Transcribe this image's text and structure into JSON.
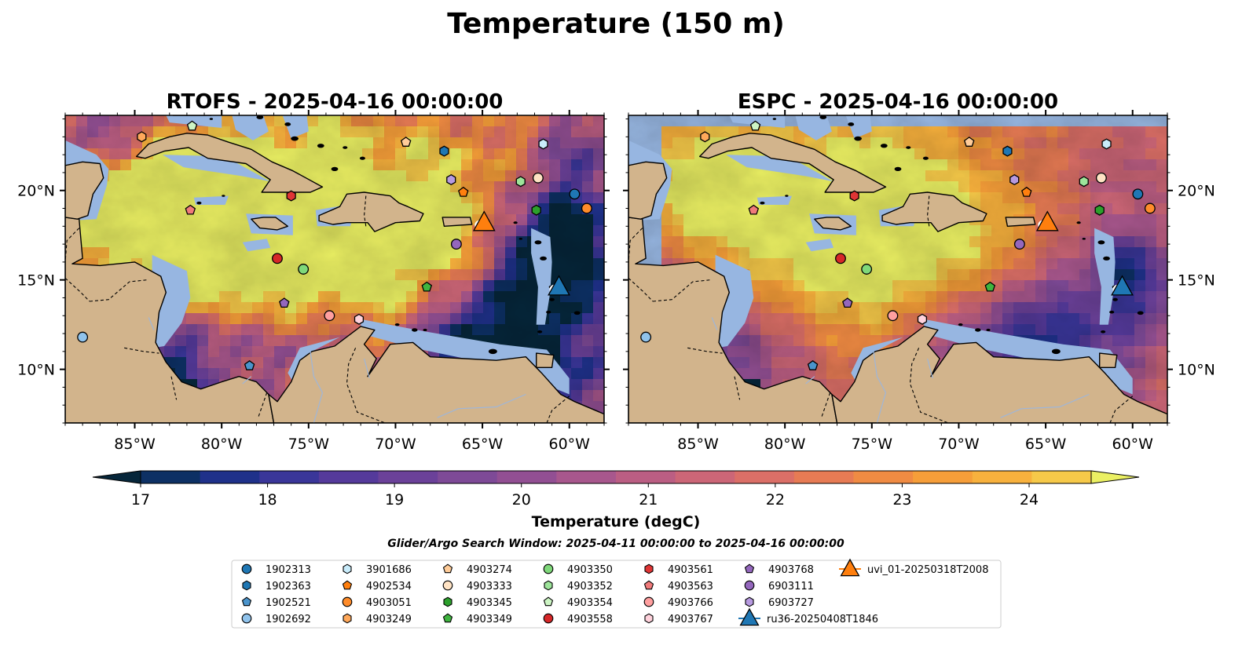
{
  "figure": {
    "title": "Temperature (150 m)",
    "search_window": "Glider/Argo Search Window: 2025-04-11 00:00:00 to 2025-04-16 00:00:00"
  },
  "maps": [
    {
      "id": "rtofs",
      "title": "RTOFS - 2025-04-16 00:00:00"
    },
    {
      "id": "espc",
      "title": "ESPC - 2025-04-16 00:00:00"
    }
  ],
  "axes": {
    "lon_range": [
      -89,
      -58
    ],
    "lat_range": [
      7,
      24.2
    ],
    "lon_ticks": [
      {
        "v": -85,
        "label": "85°W"
      },
      {
        "v": -80,
        "label": "80°W"
      },
      {
        "v": -75,
        "label": "75°W"
      },
      {
        "v": -70,
        "label": "70°W"
      },
      {
        "v": -65,
        "label": "65°W"
      },
      {
        "v": -60,
        "label": "60°W"
      }
    ],
    "lat_ticks": [
      {
        "v": 10,
        "label": "10°N"
      },
      {
        "v": 15,
        "label": "15°N"
      },
      {
        "v": 20,
        "label": "20°N"
      }
    ]
  },
  "colorbar": {
    "label": "Temperature (degC)",
    "min": 16.6,
    "max": 24.6,
    "ticks": [
      {
        "v": 17,
        "label": "17"
      },
      {
        "v": 18,
        "label": "18"
      },
      {
        "v": 19,
        "label": "19"
      },
      {
        "v": 20,
        "label": "20"
      },
      {
        "v": 21,
        "label": "21"
      },
      {
        "v": 22,
        "label": "22"
      },
      {
        "v": 23,
        "label": "23"
      },
      {
        "v": 24,
        "label": "24"
      }
    ],
    "colors": [
      "#06263a",
      "#0d3064",
      "#1f318a",
      "#3a3699",
      "#553a9b",
      "#6b4199",
      "#7e4a97",
      "#924f93",
      "#a8578d",
      "#bb5e83",
      "#cc6677",
      "#db6f67",
      "#e77b54",
      "#f08b43",
      "#f69e39",
      "#f8b13d",
      "#f6c949",
      "#ebf063"
    ]
  },
  "colors": {
    "land": "#d2b48c",
    "shelf": "#97b6e1",
    "deep_cold": "#06263a"
  },
  "legend": {
    "items": [
      {
        "label": "1902313",
        "marker": "circle",
        "color": "#1f77b4"
      },
      {
        "label": "1902363",
        "marker": "hexagon",
        "color": "#1f77b4"
      },
      {
        "label": "1902521",
        "marker": "pentagon",
        "color": "#4a94cc"
      },
      {
        "label": "1902692",
        "marker": "circle",
        "color": "#90c3ec"
      },
      {
        "label": "3901686",
        "marker": "hexagon",
        "color": "#c9ecfb"
      },
      {
        "label": "4902534",
        "marker": "pentagon",
        "color": "#ff7f0e"
      },
      {
        "label": "4903051",
        "marker": "circle",
        "color": "#ff8c2a"
      },
      {
        "label": "4903249",
        "marker": "hexagon",
        "color": "#ffa85a"
      },
      {
        "label": "4903274",
        "marker": "pentagon",
        "color": "#ffcc99"
      },
      {
        "label": "4903333",
        "marker": "circle",
        "color": "#ffe3c4"
      },
      {
        "label": "4903345",
        "marker": "hexagon",
        "color": "#2ca02c"
      },
      {
        "label": "4903349",
        "marker": "pentagon",
        "color": "#3fb43f"
      },
      {
        "label": "4903350",
        "marker": "circle",
        "color": "#7fd87a"
      },
      {
        "label": "4903352",
        "marker": "hexagon",
        "color": "#9de49a"
      },
      {
        "label": "4903354",
        "marker": "pentagon",
        "color": "#cdf5c4"
      },
      {
        "label": "4903558",
        "marker": "circle",
        "color": "#d62728"
      },
      {
        "label": "4903561",
        "marker": "hexagon",
        "color": "#e03535"
      },
      {
        "label": "4903563",
        "marker": "pentagon",
        "color": "#f07a7a"
      },
      {
        "label": "4903766",
        "marker": "circle",
        "color": "#ff9f9f"
      },
      {
        "label": "4903767",
        "marker": "hexagon",
        "color": "#ffd2dc"
      },
      {
        "label": "4903768",
        "marker": "pentagon",
        "color": "#9467bd"
      },
      {
        "label": "6903111",
        "marker": "circle",
        "color": "#9467bd"
      },
      {
        "label": "6903727",
        "marker": "hexagon",
        "color": "#b79ae0"
      },
      {
        "label": "ru36-20250408T1846",
        "marker": "triangle-line",
        "color": "#1f77b4"
      },
      {
        "label": "uvi_01-20250318T2008",
        "marker": "triangle-line",
        "color": "#ff7f0e"
      }
    ]
  },
  "floats": [
    {
      "id": "1902313",
      "lon": -59.7,
      "lat": 19.8
    },
    {
      "id": "1902363",
      "lon": -67.2,
      "lat": 22.2
    },
    {
      "id": "1902521",
      "lon": -78.4,
      "lat": 10.2
    },
    {
      "id": "1902692",
      "lon": -88.0,
      "lat": 11.8
    },
    {
      "id": "3901686",
      "lon": -61.5,
      "lat": 22.6
    },
    {
      "id": "4902534",
      "lon": -66.1,
      "lat": 19.9
    },
    {
      "id": "4903051",
      "lon": -59.0,
      "lat": 19.0
    },
    {
      "id": "4903249",
      "lon": -84.6,
      "lat": 23.0
    },
    {
      "id": "4903274",
      "lon": -69.4,
      "lat": 22.7
    },
    {
      "id": "4903333",
      "lon": -61.8,
      "lat": 20.7
    },
    {
      "id": "4903345",
      "lon": -61.9,
      "lat": 18.9
    },
    {
      "id": "4903349",
      "lon": -68.2,
      "lat": 14.6
    },
    {
      "id": "4903350",
      "lon": -75.3,
      "lat": 15.6
    },
    {
      "id": "4903352",
      "lon": -62.8,
      "lat": 20.5
    },
    {
      "id": "4903354",
      "lon": -81.7,
      "lat": 23.6
    },
    {
      "id": "4903558",
      "lon": -76.8,
      "lat": 16.2
    },
    {
      "id": "4903561",
      "lon": -76.0,
      "lat": 19.7
    },
    {
      "id": "4903563",
      "lon": -81.8,
      "lat": 18.9
    },
    {
      "id": "4903766",
      "lon": -73.8,
      "lat": 13.0
    },
    {
      "id": "4903767",
      "lon": -72.1,
      "lat": 12.8
    },
    {
      "id": "4903768",
      "lon": -76.4,
      "lat": 13.7
    },
    {
      "id": "6903111",
      "lon": -66.5,
      "lat": 17.0
    },
    {
      "id": "6903727",
      "lon": -66.8,
      "lat": 20.6
    },
    {
      "id": "ru36-20250408T1846",
      "lon": -60.6,
      "lat": 14.6
    },
    {
      "id": "uvi_01-20250318T2008",
      "lon": -64.9,
      "lat": 18.2
    }
  ]
}
